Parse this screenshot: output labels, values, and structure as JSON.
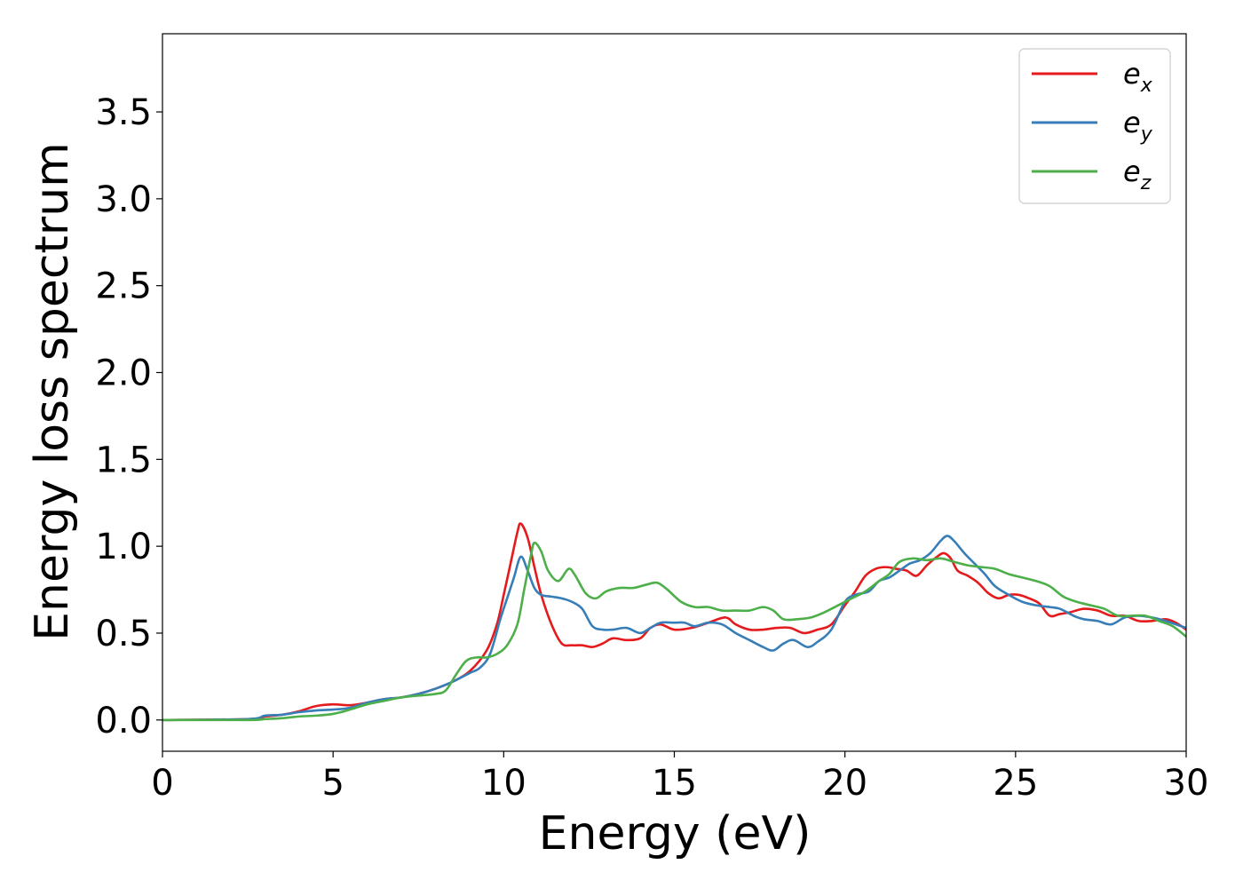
{
  "chart_data": {
    "type": "line",
    "title": "",
    "xlabel": "Energy (eV)",
    "ylabel": "Energy loss spectrum",
    "xlim": [
      0,
      30
    ],
    "ylim": [
      -0.18,
      3.95
    ],
    "xticks": [
      0,
      5,
      10,
      15,
      20,
      25,
      30
    ],
    "xtick_labels": [
      "0",
      "5",
      "10",
      "15",
      "20",
      "25",
      "30"
    ],
    "yticks": [
      0.0,
      0.5,
      1.0,
      1.5,
      2.0,
      2.5,
      3.0,
      3.5
    ],
    "ytick_labels": [
      "0.0",
      "0.5",
      "1.0",
      "1.5",
      "2.0",
      "2.5",
      "3.0",
      "3.5"
    ],
    "grid": false,
    "legend_position": "top-right",
    "series": [
      {
        "name": "e",
        "subscript": "x",
        "color": "#e41a1c",
        "x": [
          0,
          2.5,
          3.0,
          3.5,
          4.0,
          4.5,
          5.0,
          5.5,
          6.0,
          6.5,
          7.0,
          7.5,
          8.0,
          8.5,
          9.0,
          9.5,
          9.8,
          10.0,
          10.2,
          10.4,
          10.5,
          10.7,
          10.9,
          11.1,
          11.4,
          11.7,
          12.0,
          12.3,
          12.6,
          12.9,
          13.2,
          13.6,
          14.0,
          14.3,
          14.6,
          15.0,
          15.5,
          16.0,
          16.5,
          16.8,
          17.2,
          17.6,
          18.0,
          18.4,
          18.8,
          19.2,
          19.6,
          20.0,
          20.3,
          20.6,
          20.9,
          21.2,
          21.5,
          21.8,
          22.1,
          22.4,
          22.7,
          22.9,
          23.1,
          23.3,
          23.6,
          23.9,
          24.2,
          24.5,
          24.8,
          25.1,
          25.4,
          25.7,
          26.0,
          26.3,
          26.6,
          27.0,
          27.4,
          27.8,
          28.2,
          28.6,
          29.0,
          29.4,
          29.7,
          30.0
        ],
        "y": [
          0.0,
          0.005,
          0.02,
          0.03,
          0.05,
          0.08,
          0.09,
          0.085,
          0.1,
          0.12,
          0.13,
          0.15,
          0.18,
          0.22,
          0.28,
          0.4,
          0.55,
          0.72,
          0.9,
          1.08,
          1.13,
          1.05,
          0.88,
          0.72,
          0.55,
          0.44,
          0.43,
          0.43,
          0.42,
          0.44,
          0.47,
          0.46,
          0.47,
          0.53,
          0.55,
          0.52,
          0.53,
          0.56,
          0.59,
          0.55,
          0.52,
          0.52,
          0.53,
          0.53,
          0.5,
          0.52,
          0.55,
          0.66,
          0.74,
          0.83,
          0.87,
          0.88,
          0.87,
          0.86,
          0.83,
          0.89,
          0.94,
          0.96,
          0.93,
          0.86,
          0.83,
          0.79,
          0.73,
          0.7,
          0.72,
          0.72,
          0.7,
          0.67,
          0.6,
          0.61,
          0.62,
          0.64,
          0.63,
          0.6,
          0.6,
          0.57,
          0.57,
          0.58,
          0.56,
          0.52
        ]
      },
      {
        "name": "e",
        "subscript": "y",
        "color": "#377eb8",
        "x": [
          0,
          2.5,
          3.0,
          3.5,
          4.0,
          4.5,
          5.0,
          5.5,
          6.0,
          6.5,
          7.0,
          7.5,
          8.0,
          8.5,
          9.0,
          9.3,
          9.6,
          9.9,
          10.1,
          10.3,
          10.5,
          10.7,
          10.9,
          11.1,
          11.4,
          11.7,
          12.0,
          12.3,
          12.6,
          12.9,
          13.2,
          13.6,
          14.0,
          14.3,
          14.6,
          15.0,
          15.3,
          15.6,
          16.0,
          16.4,
          16.8,
          17.2,
          17.6,
          17.9,
          18.2,
          18.5,
          18.9,
          19.2,
          19.6,
          20.0,
          20.3,
          20.7,
          21.0,
          21.3,
          21.6,
          21.9,
          22.2,
          22.5,
          22.8,
          23.0,
          23.2,
          23.5,
          23.8,
          24.1,
          24.4,
          24.8,
          25.2,
          25.6,
          26.0,
          26.3,
          26.7,
          27.0,
          27.4,
          27.8,
          28.2,
          28.6,
          29.0,
          29.4,
          29.7,
          30.0
        ],
        "y": [
          0.0,
          0.005,
          0.025,
          0.03,
          0.045,
          0.055,
          0.06,
          0.07,
          0.1,
          0.12,
          0.13,
          0.15,
          0.18,
          0.22,
          0.27,
          0.3,
          0.38,
          0.58,
          0.7,
          0.82,
          0.94,
          0.86,
          0.76,
          0.72,
          0.71,
          0.7,
          0.68,
          0.64,
          0.54,
          0.52,
          0.52,
          0.53,
          0.5,
          0.53,
          0.56,
          0.56,
          0.56,
          0.54,
          0.56,
          0.55,
          0.5,
          0.46,
          0.42,
          0.4,
          0.44,
          0.46,
          0.42,
          0.45,
          0.52,
          0.68,
          0.72,
          0.74,
          0.8,
          0.82,
          0.86,
          0.9,
          0.92,
          0.96,
          1.03,
          1.06,
          1.03,
          0.96,
          0.9,
          0.84,
          0.77,
          0.72,
          0.68,
          0.66,
          0.65,
          0.64,
          0.6,
          0.58,
          0.57,
          0.55,
          0.59,
          0.6,
          0.59,
          0.57,
          0.55,
          0.53
        ]
      },
      {
        "name": "e",
        "subscript": "z",
        "color": "#4daf4a",
        "x": [
          0,
          2.5,
          3.0,
          3.5,
          4.0,
          4.5,
          5.0,
          5.5,
          6.0,
          6.5,
          7.0,
          7.5,
          8.0,
          8.3,
          8.6,
          8.9,
          9.2,
          9.5,
          9.8,
          10.1,
          10.4,
          10.6,
          10.8,
          10.9,
          11.1,
          11.3,
          11.6,
          11.9,
          12.1,
          12.4,
          12.7,
          13.0,
          13.4,
          13.8,
          14.2,
          14.5,
          14.8,
          15.2,
          15.6,
          16.0,
          16.4,
          16.8,
          17.2,
          17.6,
          17.9,
          18.2,
          18.6,
          19.0,
          19.4,
          19.8,
          20.2,
          20.6,
          21.0,
          21.3,
          21.6,
          22.0,
          22.4,
          22.8,
          23.2,
          23.6,
          24.0,
          24.4,
          24.8,
          25.2,
          25.6,
          26.0,
          26.4,
          26.8,
          27.2,
          27.6,
          28.0,
          28.4,
          28.8,
          29.2,
          29.6,
          30.0
        ],
        "y": [
          0.0,
          0.0,
          0.005,
          0.01,
          0.02,
          0.025,
          0.035,
          0.06,
          0.09,
          0.11,
          0.13,
          0.14,
          0.15,
          0.17,
          0.26,
          0.34,
          0.36,
          0.36,
          0.38,
          0.43,
          0.55,
          0.75,
          0.95,
          1.02,
          0.97,
          0.86,
          0.8,
          0.87,
          0.83,
          0.73,
          0.7,
          0.74,
          0.76,
          0.76,
          0.78,
          0.79,
          0.75,
          0.68,
          0.65,
          0.65,
          0.63,
          0.63,
          0.63,
          0.65,
          0.63,
          0.58,
          0.58,
          0.59,
          0.62,
          0.66,
          0.7,
          0.74,
          0.8,
          0.84,
          0.91,
          0.93,
          0.92,
          0.93,
          0.91,
          0.89,
          0.88,
          0.87,
          0.84,
          0.82,
          0.8,
          0.77,
          0.71,
          0.68,
          0.66,
          0.64,
          0.6,
          0.6,
          0.6,
          0.57,
          0.54,
          0.48
        ]
      }
    ]
  }
}
